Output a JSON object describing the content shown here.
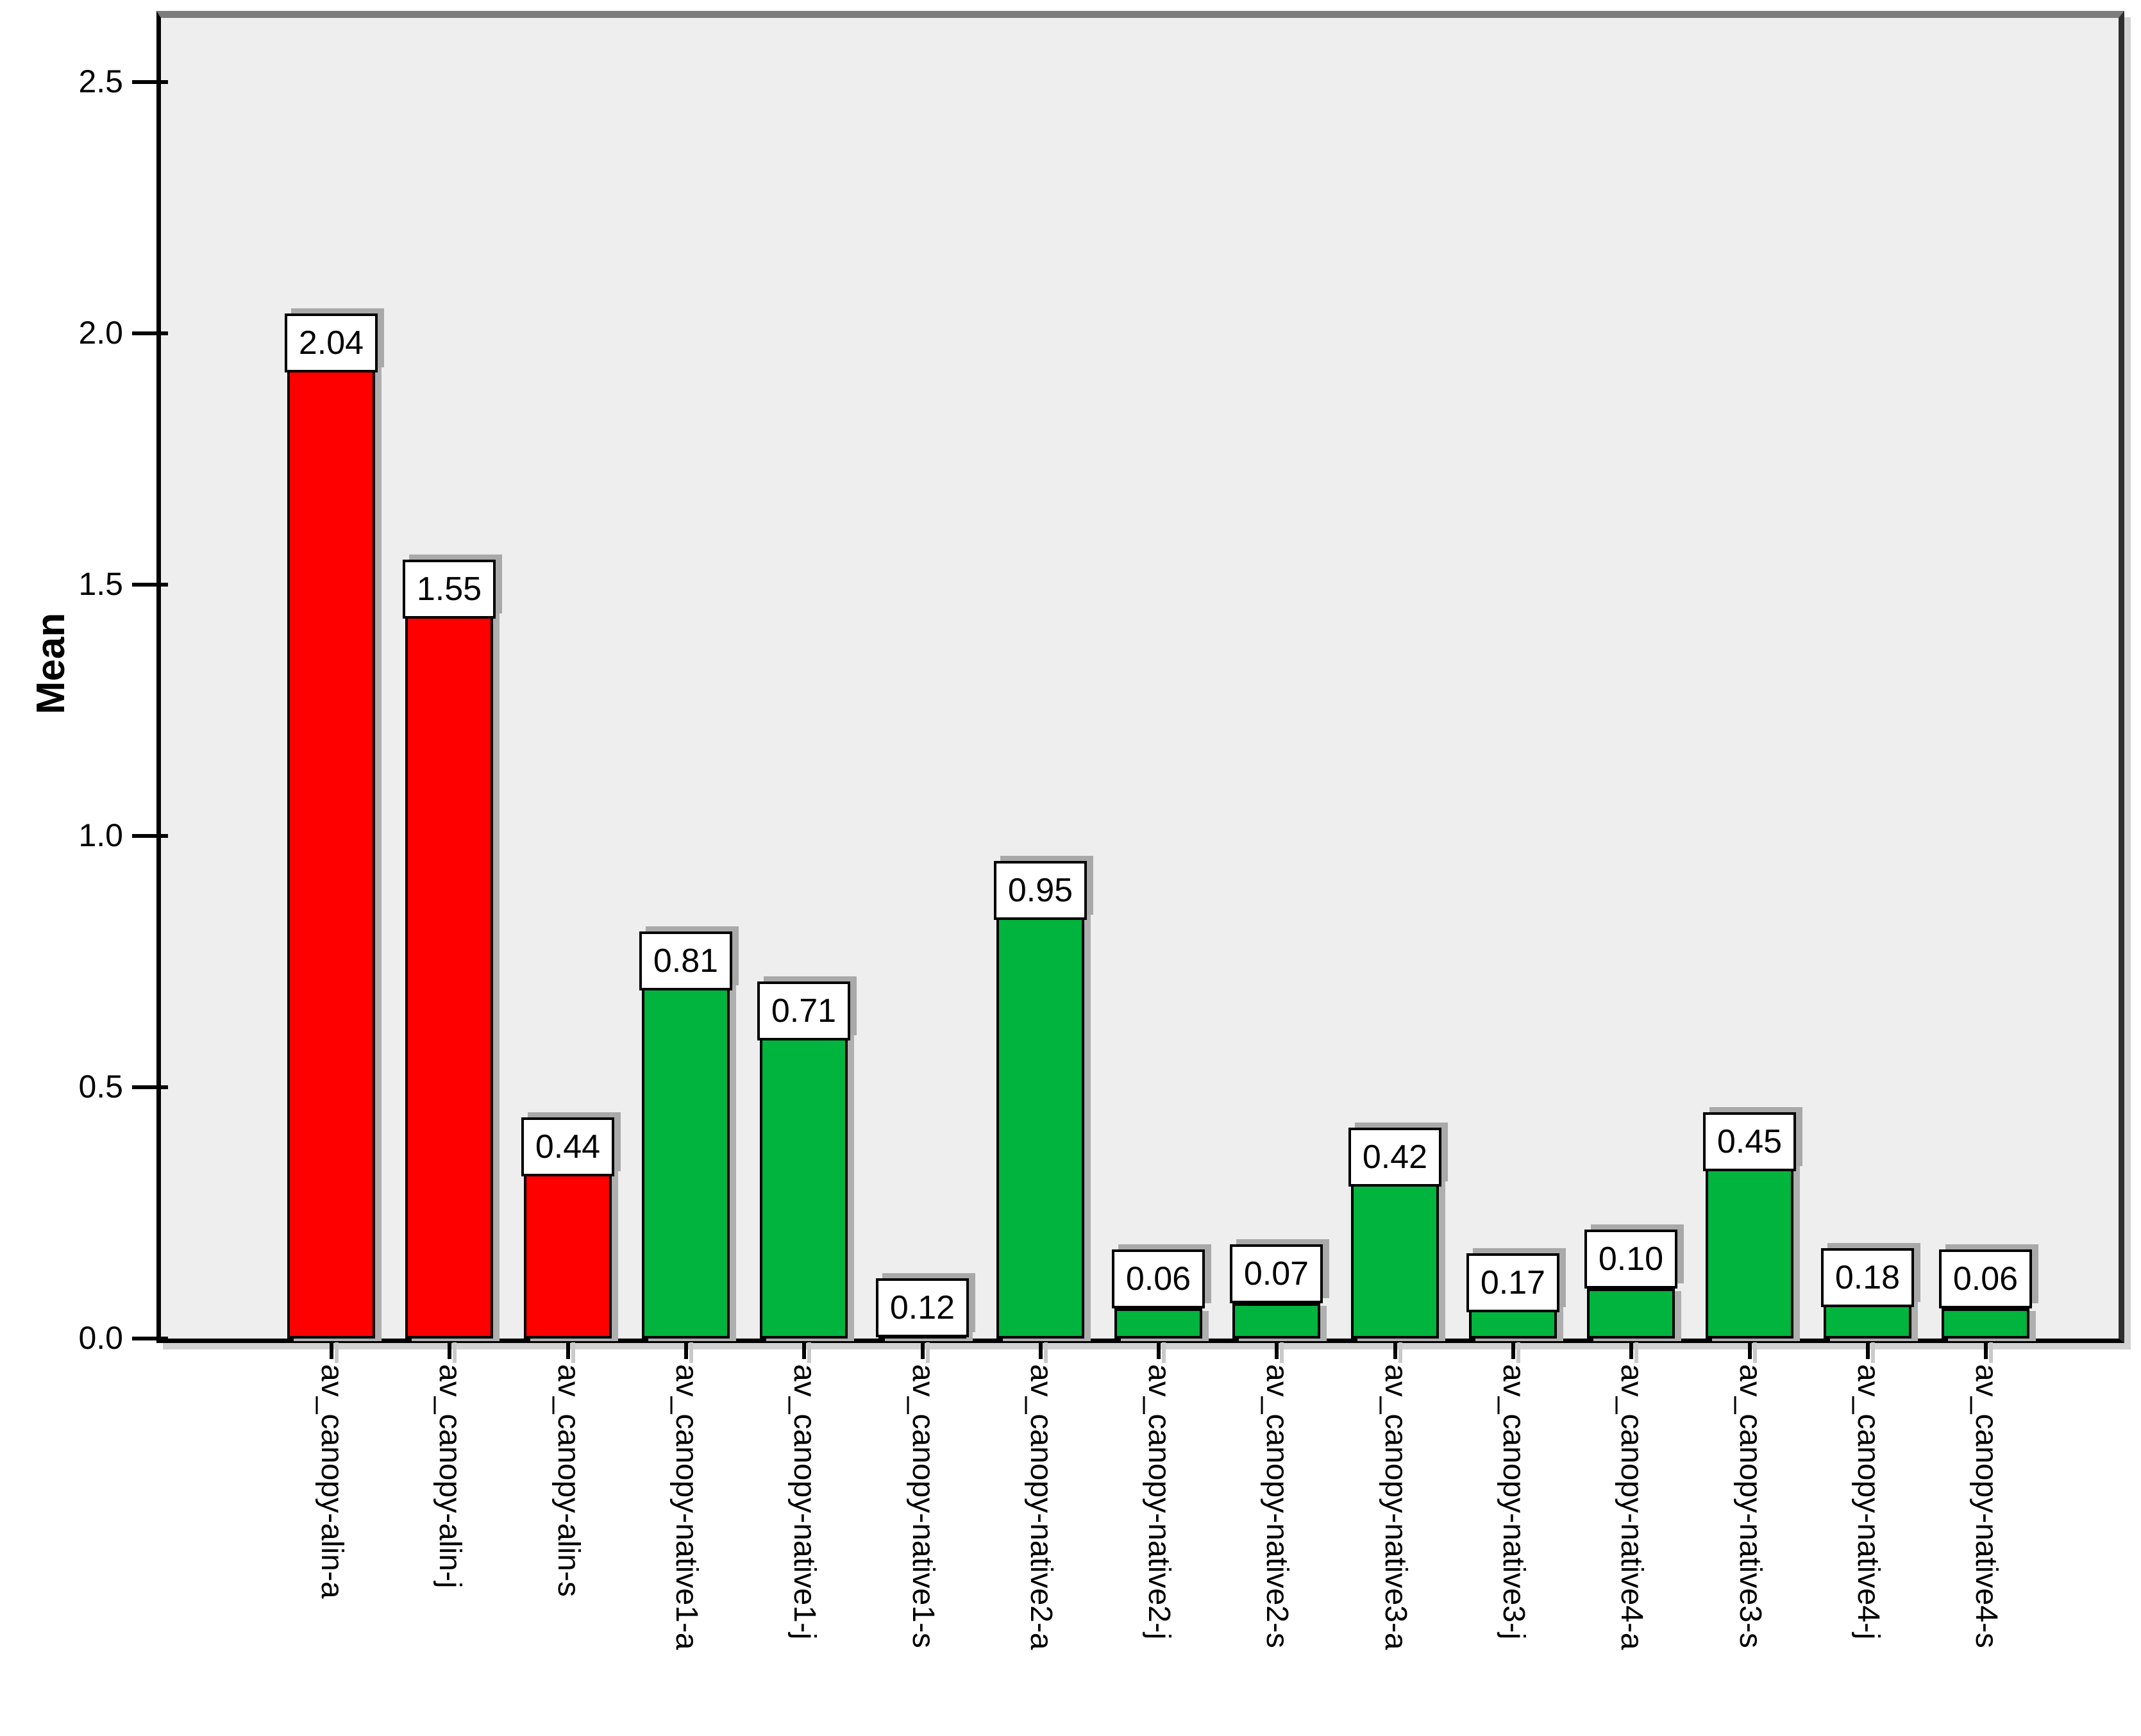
{
  "chart_data": {
    "type": "bar",
    "title": "",
    "xlabel": "",
    "ylabel": "Mean",
    "ylim": [
      0,
      2.63
    ],
    "grid": "off",
    "legend": "none",
    "plot_background": "#EFEEEE",
    "ytick_values": [
      0.0,
      0.5,
      1.0,
      1.5,
      2.0,
      2.5
    ],
    "ytick_labels": [
      "0.0",
      "0.5",
      "1.0",
      "1.5",
      "2.0",
      "2.5"
    ],
    "categories": [
      "av_canopy-alin-a",
      "av_canopy-alin-j",
      "av_canopy-alin-s",
      "av_canopy-native1-a",
      "av_canopy-native1-j",
      "av_canopy-native1-s",
      "av_canopy-native2-a",
      "av_canopy-native2-j",
      "av_canopy-native2-s",
      "av_canopy-native3-a",
      "av_canopy-native3-j",
      "av_canopy-native4-a",
      "av_canopy-native3-s",
      "av_canopy-native4-j",
      "av_canopy-native4-s"
    ],
    "values": [
      2.04,
      1.55,
      0.44,
      0.81,
      0.71,
      0.12,
      0.95,
      0.06,
      0.07,
      0.42,
      0.17,
      0.1,
      0.45,
      0.18,
      0.06
    ],
    "value_labels": [
      "2.04",
      "1.55",
      "0.44",
      "0.81",
      "0.71",
      "0.12",
      "0.95",
      "0.06",
      "0.07",
      "0.42",
      "0.17",
      "0.10",
      "0.45",
      "0.18",
      "0.06"
    ],
    "bar_color_names": [
      "red",
      "red",
      "red",
      "green",
      "green",
      "green",
      "green",
      "green",
      "green",
      "green",
      "green",
      "green",
      "green",
      "green",
      "green"
    ]
  },
  "colors": {
    "red": "#FF0000",
    "green": "#00B43E",
    "plot_background": "#EFEEEE",
    "frame_top": "#7C7C7C",
    "frame_right": "#2E2E2E",
    "axis": "#000000",
    "shadow": "#A9A9A9",
    "label_box_background": "#FFFFFF"
  }
}
